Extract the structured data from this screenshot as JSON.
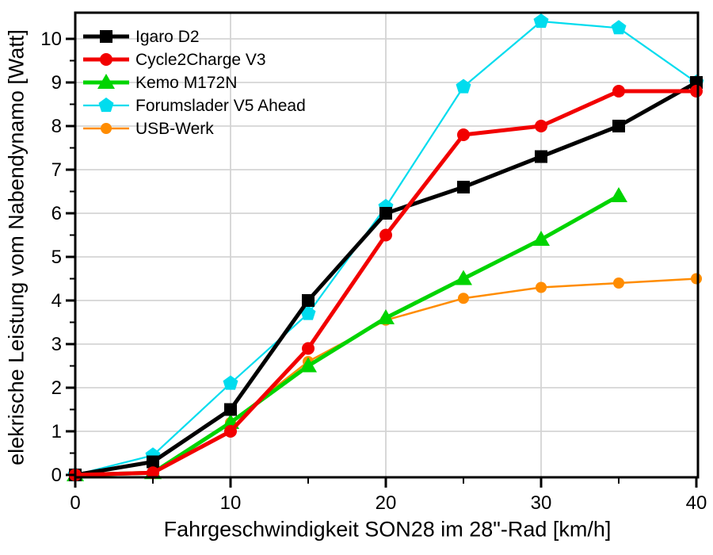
{
  "chart_data": {
    "type": "line",
    "title": "",
    "xlabel": "Fahrgeschwindigkeit SON28 im 28\"-Rad [km/h]",
    "ylabel": "elekrische Leistung vom Nabendynamo [Watt]",
    "xlim": [
      0,
      40
    ],
    "ylim": [
      0,
      10.6
    ],
    "x_major_ticks": [
      0,
      10,
      20,
      30,
      40
    ],
    "x_minor_ticks": [
      5,
      15,
      25,
      35
    ],
    "y_major_ticks": [
      0,
      1,
      2,
      3,
      4,
      5,
      6,
      7,
      8,
      9,
      10
    ],
    "y_minor_ticks": [
      0.5,
      1.5,
      2.5,
      3.5,
      4.5,
      5.5,
      6.5,
      7.5,
      8.5,
      9.5
    ],
    "grid": true,
    "grid_color": "#d4d4d4",
    "frame_color": "#000000",
    "background": "#ffffff",
    "text_color": "#000000",
    "legend_position": "top-left",
    "x": [
      0,
      5,
      10,
      15,
      20,
      25,
      30,
      35,
      40
    ],
    "series": [
      {
        "name": "Forumslader V5 Ahead",
        "color": "#00dcee",
        "marker": "pentagon",
        "line_width": 2.2,
        "marker_size": 10,
        "values": [
          0,
          0.45,
          2.1,
          3.7,
          6.15,
          8.9,
          10.4,
          10.25,
          9.0
        ]
      },
      {
        "name": "USB-Werk",
        "color": "#ff8c00",
        "marker": "circle",
        "line_width": 2.5,
        "marker_size": 7,
        "values": [
          0,
          0.05,
          1.2,
          2.6,
          3.55,
          4.05,
          4.3,
          4.4,
          4.5
        ]
      },
      {
        "name": "Kemo M172N",
        "color": "#00d400",
        "marker": "triangle",
        "line_width": 5,
        "marker_size": 10,
        "values": [
          0,
          0.05,
          1.2,
          2.5,
          3.6,
          4.5,
          5.4,
          6.4,
          null
        ]
      },
      {
        "name": "Igaro D2",
        "color": "#000000",
        "marker": "square",
        "line_width": 5,
        "marker_size": 8,
        "values": [
          0,
          0.3,
          1.5,
          4.0,
          6.0,
          6.6,
          7.3,
          8.0,
          9.0
        ]
      },
      {
        "name": "Cycle2Charge V3",
        "color": "#f20000",
        "marker": "circle",
        "line_width": 5,
        "marker_size": 8,
        "values": [
          0,
          0.05,
          1.0,
          2.9,
          5.5,
          7.8,
          8.0,
          8.8,
          8.8
        ]
      }
    ],
    "legend_order": [
      "Igaro D2",
      "Cycle2Charge V3",
      "Kemo M172N",
      "Forumslader V5 Ahead",
      "USB-Werk"
    ]
  }
}
